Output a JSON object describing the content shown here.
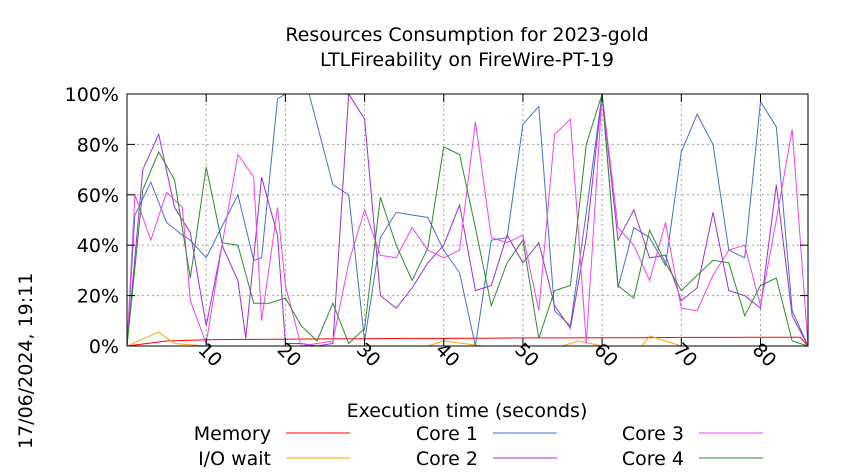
{
  "chart_data": {
    "type": "line",
    "title": "Resources Consumption for 2023-gold",
    "subtitle": "LTLFireability on FireWire-PT-19",
    "xlabel": "Execution time (seconds)",
    "ylabel": "",
    "xlim": [
      0,
      86
    ],
    "ylim": [
      0,
      100
    ],
    "xticks": [
      10,
      20,
      30,
      40,
      50,
      60,
      70,
      80
    ],
    "xtick_labels": [
      "10",
      "20",
      "30",
      "40",
      "50",
      "60",
      "70",
      "80"
    ],
    "yticks": [
      0,
      20,
      40,
      60,
      80,
      100
    ],
    "ytick_labels": [
      "0%",
      "20%",
      "40%",
      "60%",
      "80%",
      "100%"
    ],
    "grid": true,
    "legend_position": "bottom",
    "timestamp": "17/06/2024, 19:11",
    "series": [
      {
        "name": "Memory",
        "color": "#ff0000",
        "x": [
          0,
          5,
          10,
          15,
          20,
          25,
          30,
          35,
          40,
          45,
          50,
          55,
          60,
          65,
          70,
          75,
          80,
          85,
          86
        ],
        "y": [
          0,
          2,
          2.5,
          2.6,
          2.7,
          2.8,
          2.9,
          3,
          3,
          3.1,
          3.2,
          3.2,
          3.3,
          3.3,
          3.4,
          3.4,
          3.5,
          3.5,
          0
        ]
      },
      {
        "name": "I/O wait",
        "color": "#ffa500",
        "x": [
          0,
          4,
          6,
          10,
          25,
          30,
          38,
          40,
          45,
          55,
          57,
          60,
          65,
          66,
          70,
          80,
          86
        ],
        "y": [
          0,
          5.5,
          1,
          0,
          0,
          0,
          0,
          2,
          0,
          0,
          2,
          0,
          0,
          4,
          0,
          0,
          0
        ]
      },
      {
        "name": "Core 1",
        "color": "#4a6fc7",
        "x": [
          0,
          1,
          3,
          5,
          7,
          8,
          10,
          14,
          16,
          17,
          19,
          20,
          22,
          23,
          26,
          28,
          30,
          32,
          34,
          36,
          38,
          40,
          42,
          44,
          46,
          48,
          50,
          52,
          54,
          56,
          58,
          60,
          62,
          64,
          66,
          68,
          70,
          72,
          74,
          76,
          78,
          80,
          82,
          84,
          86
        ],
        "y": [
          0,
          52,
          65,
          49,
          44,
          42,
          35,
          60,
          34,
          35,
          98,
          100,
          100,
          100,
          64,
          60,
          2,
          43,
          53,
          52,
          51,
          38,
          29,
          0,
          42,
          43,
          88,
          95,
          14,
          8,
          53,
          100,
          23,
          47,
          43,
          32,
          77,
          92,
          80,
          38,
          35,
          97,
          87,
          14,
          0
        ]
      },
      {
        "name": "Core 2",
        "color": "#9b30d0",
        "x": [
          0,
          2,
          4,
          6,
          8,
          10,
          12,
          14,
          15,
          17,
          19,
          20,
          22,
          24,
          26,
          28,
          30,
          32,
          34,
          36,
          38,
          40,
          42,
          44,
          46,
          48,
          50,
          52,
          54,
          56,
          58,
          60,
          62,
          64,
          66,
          68,
          70,
          72,
          74,
          76,
          78,
          80,
          82,
          84,
          86
        ],
        "y": [
          0,
          70,
          84,
          55,
          45,
          8,
          40,
          26,
          3,
          67,
          44,
          1,
          1,
          0,
          1,
          100,
          90,
          20,
          15,
          23,
          33,
          40,
          56,
          22,
          24,
          44,
          33,
          41,
          16,
          7,
          43,
          100,
          42,
          54,
          35,
          36,
          18,
          23,
          53,
          22,
          20,
          15,
          64,
          12,
          0
        ]
      },
      {
        "name": "Core 3",
        "color": "#ee44ee",
        "x": [
          0,
          1,
          3,
          5,
          7,
          8,
          10,
          12,
          14,
          16,
          17,
          19,
          20,
          22,
          24,
          26,
          28,
          30,
          32,
          34,
          36,
          38,
          40,
          42,
          44,
          46,
          48,
          50,
          52,
          54,
          56,
          58,
          60,
          62,
          64,
          66,
          68,
          70,
          72,
          74,
          76,
          78,
          80,
          82,
          84,
          86
        ],
        "y": [
          0,
          60,
          42,
          61,
          55,
          18,
          1,
          40,
          76,
          67,
          10,
          55,
          24,
          0,
          1,
          2,
          33,
          54,
          36,
          35,
          47,
          38,
          35,
          38,
          89,
          43,
          41,
          44,
          14,
          84,
          90,
          1,
          100,
          47,
          40,
          26,
          49,
          15,
          14,
          28,
          38,
          40,
          16,
          50,
          86,
          0
        ]
      },
      {
        "name": "Core 4",
        "color": "#2e8b2e",
        "x": [
          0,
          2,
          4,
          6,
          8,
          10,
          12,
          14,
          16,
          18,
          20,
          22,
          24,
          26,
          28,
          30,
          32,
          34,
          36,
          38,
          40,
          42,
          44,
          46,
          48,
          50,
          52,
          54,
          56,
          58,
          60,
          62,
          64,
          66,
          68,
          70,
          72,
          74,
          76,
          78,
          80,
          82,
          84,
          86
        ],
        "y": [
          0,
          62,
          77,
          66,
          27,
          71,
          41,
          40,
          17,
          17,
          19,
          8,
          2,
          17,
          1,
          7,
          59,
          40,
          26,
          39,
          79,
          76,
          47,
          16,
          33,
          42,
          3,
          22,
          24,
          80,
          100,
          24,
          19,
          46,
          33,
          22,
          28,
          34,
          33,
          12,
          24,
          27,
          2,
          0
        ]
      }
    ]
  }
}
